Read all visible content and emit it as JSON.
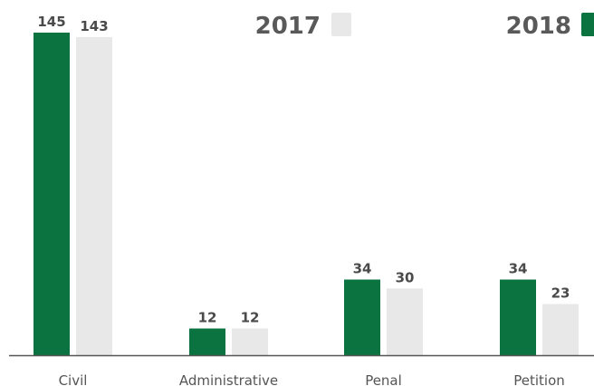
{
  "chart_data": {
    "type": "bar",
    "categories": [
      "Civil",
      "Administrative",
      "Penal",
      "Petition"
    ],
    "series": [
      {
        "name": "2018",
        "values": [
          145,
          12,
          34,
          34
        ],
        "color": "#0a7340"
      },
      {
        "name": "2017",
        "values": [
          143,
          12,
          30,
          23
        ],
        "color": "#e8e8e8"
      }
    ],
    "title": "",
    "xlabel": "",
    "ylabel": "",
    "ylim": [
      0,
      145
    ],
    "grid": false,
    "legend_position": "top",
    "axis_color": "#555555"
  }
}
